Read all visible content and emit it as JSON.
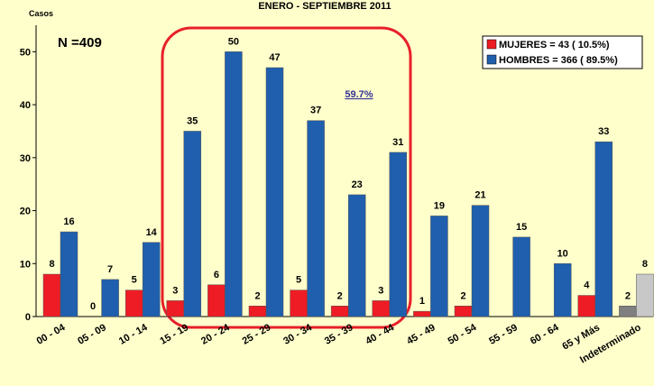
{
  "chart_data": {
    "type": "bar",
    "title": "ENERO - SEPTIEMBRE  2011",
    "y_label": "Casos",
    "annotations": [
      "N =409",
      "59.7%"
    ],
    "categories": [
      "00 - 04",
      "05 - 09",
      "10 - 14",
      "15 - 19",
      "20 - 24",
      "25 - 29",
      "30 - 34",
      "35 - 39",
      "40 - 44",
      "45 - 49",
      "50 - 54",
      "55 - 59",
      "60 - 64",
      "65 y Más",
      "Indeterminado"
    ],
    "series": [
      {
        "name": "MUJERES = 43 ( 10.5%)",
        "color": "#ee1c24",
        "point_colors": [
          "#ee1c24",
          "#ee1c24",
          "#ee1c24",
          "#ee1c24",
          "#ee1c24",
          "#ee1c24",
          "#ee1c24",
          "#ee1c24",
          "#ee1c24",
          "#ee1c24",
          "#ee1c24",
          "#ee1c24",
          "#ee1c24",
          "#ee1c24",
          "#808080"
        ],
        "values": [
          8,
          0,
          5,
          3,
          6,
          2,
          5,
          2,
          3,
          1,
          2,
          null,
          null,
          4,
          2
        ]
      },
      {
        "name": "HOMBRES = 366 ( 89.5%)",
        "color": "#1f5fad",
        "point_colors": [
          "#1f5fad",
          "#1f5fad",
          "#1f5fad",
          "#1f5fad",
          "#1f5fad",
          "#1f5fad",
          "#1f5fad",
          "#1f5fad",
          "#1f5fad",
          "#1f5fad",
          "#1f5fad",
          "#1f5fad",
          "#1f5fad",
          "#1f5fad",
          "#c8c8c8"
        ],
        "values": [
          16,
          7,
          14,
          35,
          50,
          47,
          37,
          23,
          31,
          19,
          21,
          15,
          10,
          33,
          8
        ]
      }
    ],
    "ylim": [
      0,
      55
    ],
    "yticks": [
      0,
      10,
      20,
      30,
      40,
      50
    ],
    "grid": false,
    "legend": "top-right"
  }
}
